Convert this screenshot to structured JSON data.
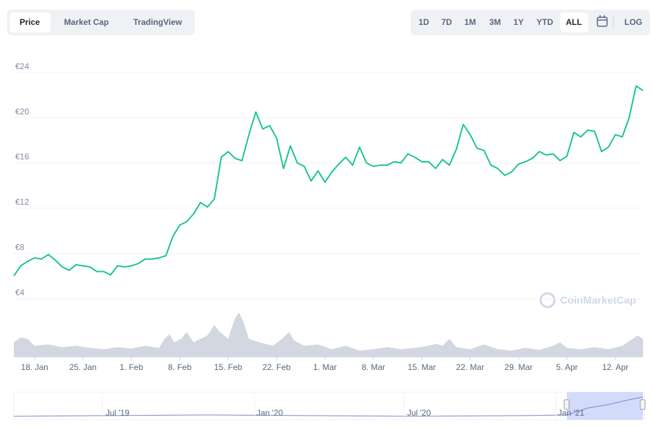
{
  "controls": {
    "tabs": [
      "Price",
      "Market Cap",
      "TradingView"
    ],
    "ranges": [
      "1D",
      "7D",
      "1M",
      "3M",
      "1Y",
      "YTD",
      "ALL"
    ],
    "log": "LOG"
  },
  "watermark": "CoinMarketCap",
  "chart_data": {
    "type": "line",
    "color": "#16c784",
    "grid": true,
    "x": [
      "01-15",
      "01-16",
      "01-17",
      "01-18",
      "01-19",
      "01-20",
      "01-21",
      "01-22",
      "01-23",
      "01-24",
      "01-25",
      "01-26",
      "01-27",
      "01-28",
      "01-29",
      "01-30",
      "01-31",
      "02-01",
      "02-02",
      "02-03",
      "02-04",
      "02-05",
      "02-06",
      "02-07",
      "02-08",
      "02-09",
      "02-10",
      "02-11",
      "02-12",
      "02-13",
      "02-14",
      "02-15",
      "02-16",
      "02-17",
      "02-18",
      "02-19",
      "02-20",
      "02-21",
      "02-22",
      "02-23",
      "02-24",
      "02-25",
      "02-26",
      "02-27",
      "02-28",
      "03-01",
      "03-02",
      "03-03",
      "03-04",
      "03-05",
      "03-06",
      "03-07",
      "03-08",
      "03-09",
      "03-10",
      "03-11",
      "03-12",
      "03-13",
      "03-14",
      "03-15",
      "03-16",
      "03-17",
      "03-18",
      "03-19",
      "03-20",
      "03-21",
      "03-22",
      "03-23",
      "03-24",
      "03-25",
      "03-26",
      "03-27",
      "03-28",
      "03-29",
      "03-30",
      "03-31",
      "04-01",
      "04-02",
      "04-03",
      "04-04",
      "04-05",
      "04-06",
      "04-07",
      "04-08",
      "04-09",
      "04-10",
      "04-11",
      "04-12",
      "04-13",
      "04-14",
      "04-15",
      "04-16"
    ],
    "values": [
      6.0,
      6.9,
      7.3,
      7.6,
      7.5,
      7.9,
      7.4,
      6.8,
      6.5,
      7.0,
      6.9,
      6.8,
      6.4,
      6.4,
      6.1,
      6.9,
      6.8,
      6.9,
      7.1,
      7.5,
      7.5,
      7.6,
      7.8,
      9.5,
      10.5,
      10.8,
      11.5,
      12.5,
      12.1,
      12.8,
      16.5,
      17.0,
      16.4,
      16.2,
      18.5,
      20.5,
      19.0,
      19.3,
      18.2,
      15.5,
      17.5,
      16.0,
      15.7,
      14.4,
      15.3,
      14.3,
      15.2,
      15.9,
      16.5,
      15.8,
      17.4,
      16.0,
      15.7,
      15.8,
      15.8,
      16.1,
      16.0,
      16.8,
      16.5,
      16.1,
      16.1,
      15.5,
      16.3,
      15.8,
      17.2,
      19.4,
      18.5,
      17.3,
      17.1,
      15.8,
      15.5,
      14.9,
      15.2,
      15.9,
      16.1,
      16.4,
      17.0,
      16.7,
      16.8,
      16.2,
      16.6,
      18.7,
      18.3,
      18.9,
      18.8,
      17.0,
      17.4,
      18.5,
      18.3,
      20.0,
      22.8,
      22.4
    ],
    "xlim": [
      "01-15",
      "04-16"
    ],
    "xticks": [
      {
        "value": "01-18",
        "label": "18. Jan"
      },
      {
        "value": "01-25",
        "label": "25. Jan"
      },
      {
        "value": "02-01",
        "label": "1. Feb"
      },
      {
        "value": "02-08",
        "label": "8. Feb"
      },
      {
        "value": "02-15",
        "label": "15. Feb"
      },
      {
        "value": "02-22",
        "label": "22. Feb"
      },
      {
        "value": "03-01",
        "label": "1. Mar"
      },
      {
        "value": "03-08",
        "label": "8. Mar"
      },
      {
        "value": "03-15",
        "label": "15. Mar"
      },
      {
        "value": "03-22",
        "label": "22. Mar"
      },
      {
        "value": "03-29",
        "label": "29. Mar"
      },
      {
        "value": "04-05",
        "label": "5. Apr"
      },
      {
        "value": "04-12",
        "label": "12. Apr"
      }
    ],
    "ylim": [
      3.5,
      24.9
    ],
    "yticks": [
      {
        "value": 4,
        "label": "€4"
      },
      {
        "value": 8,
        "label": "€8"
      },
      {
        "value": 12,
        "label": "€12"
      },
      {
        "value": 16,
        "label": "€16"
      },
      {
        "value": 20,
        "label": "€20"
      },
      {
        "value": 24,
        "label": "€24"
      }
    ],
    "navigator_labels": [
      "Jul '19",
      "Jan '20",
      "Jul '20",
      "Jan '21"
    ]
  }
}
